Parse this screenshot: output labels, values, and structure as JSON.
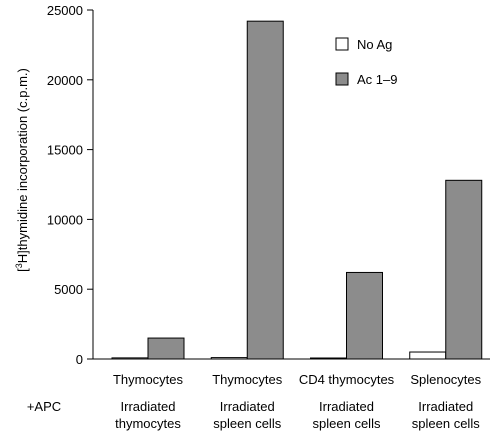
{
  "chart_data": {
    "type": "bar",
    "ylabel_prefix": "[",
    "ylabel_sup": "3",
    "ylabel_rest": "H]thymidine incorporation (c.p.m.)",
    "ylim": [
      0,
      25000
    ],
    "yticks": [
      0,
      5000,
      10000,
      15000,
      20000,
      25000
    ],
    "categories": [
      {
        "cell": "Thymocytes",
        "apc_line1": "Irradiated",
        "apc_line2": "thymocytes"
      },
      {
        "cell": "Thymocytes",
        "apc_line1": "Irradiated",
        "apc_line2": "spleen cells"
      },
      {
        "cell": "CD4 thymocytes",
        "apc_line1": "Irradiated",
        "apc_line2": "spleen cells"
      },
      {
        "cell": "Splenocytes",
        "apc_line1": "Irradiated",
        "apc_line2": "spleen cells"
      }
    ],
    "row_label": "+APC",
    "series": [
      {
        "name": "No Ag",
        "color": "#ffffff",
        "values": [
          80,
          100,
          30,
          500
        ]
      },
      {
        "name": "Ac 1–9",
        "color": "#8c8c8c",
        "values": [
          1500,
          24200,
          6200,
          12800
        ]
      }
    ],
    "legend_position": "top-right",
    "grid": false
  }
}
